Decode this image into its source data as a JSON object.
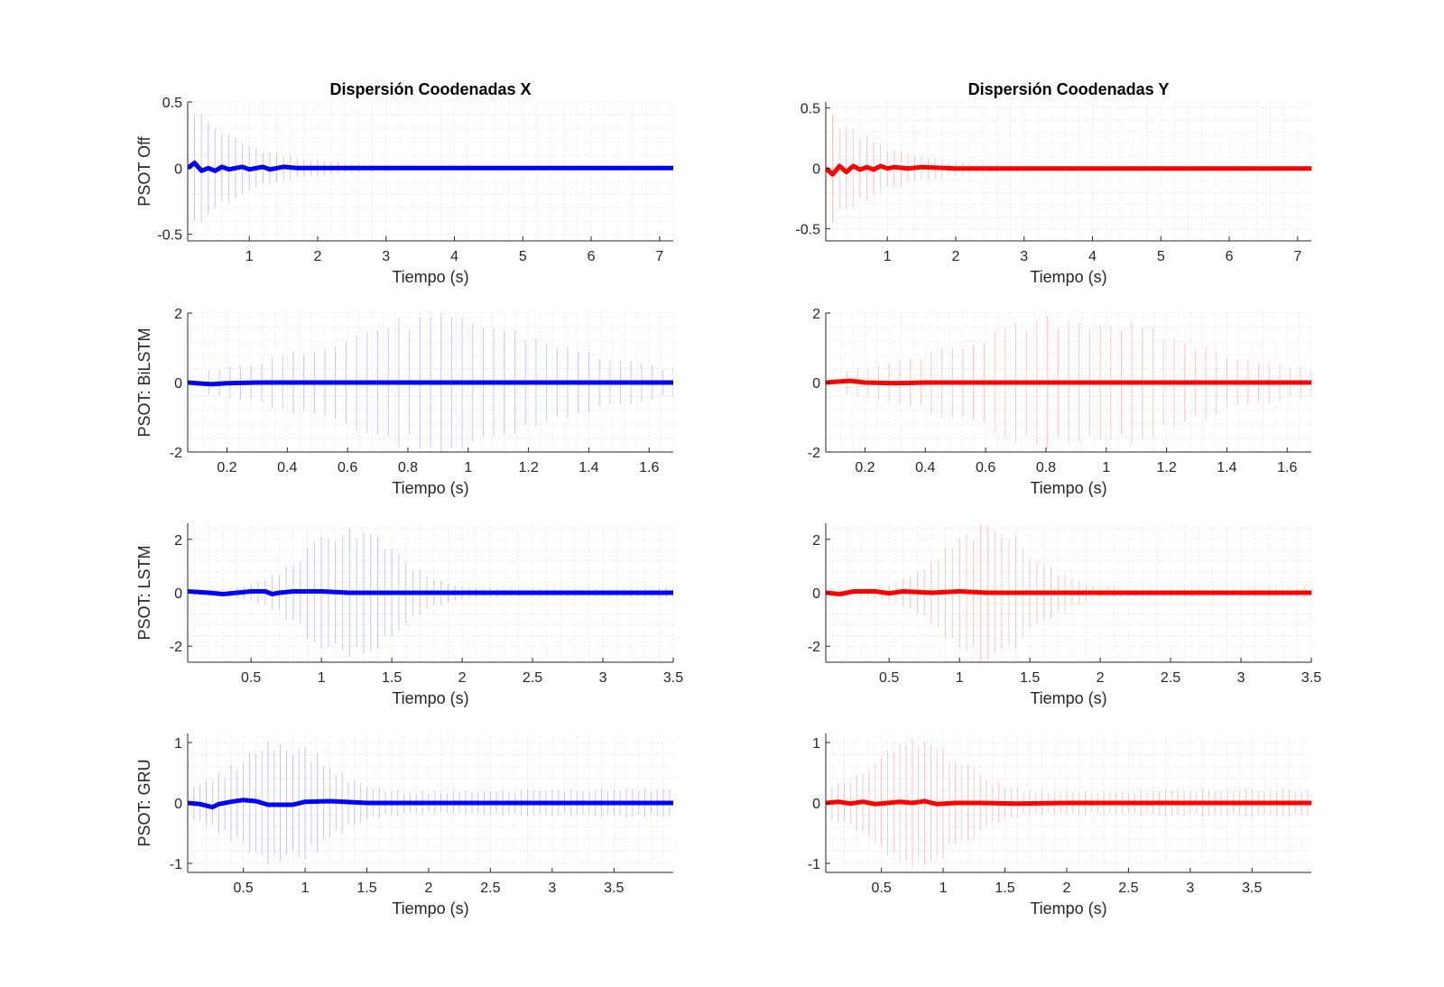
{
  "figure": {
    "background": "#ffffff"
  },
  "chart_data": [
    {
      "type": "line",
      "column": 0,
      "row": 0,
      "title": "Dispersión Coodenadas X",
      "xlabel": "Tiempo (s)",
      "ylabel": "PSOT Off",
      "xlim": [
        0.1,
        7.2
      ],
      "ylim": [
        -0.55,
        0.5
      ],
      "xticks": [
        1,
        2,
        3,
        4,
        5,
        6,
        7
      ],
      "yticks": [
        -0.5,
        0,
        0.5
      ],
      "grid": true,
      "color": "#0000ff",
      "mean": {
        "x": [
          0.1,
          0.2,
          0.3,
          0.4,
          0.5,
          0.6,
          0.7,
          0.8,
          0.9,
          1.0,
          1.1,
          1.2,
          1.3,
          1.5,
          1.7,
          2.0,
          2.5,
          3.0,
          7.2
        ],
        "y": [
          0.0,
          0.04,
          -0.02,
          0.0,
          -0.02,
          0.01,
          -0.01,
          0.0,
          0.01,
          -0.01,
          0.0,
          0.01,
          -0.01,
          0.01,
          0.0,
          0.0,
          0.0,
          0.0,
          0.0
        ]
      },
      "spread": {
        "x_start": 0.2,
        "x_end": 7.2,
        "step": 0.1,
        "amp_start": 0.5,
        "amp_end": 0.01,
        "decay": 0.8
      }
    },
    {
      "type": "line",
      "column": 1,
      "row": 0,
      "title": "Dispersión Coodenadas Y",
      "xlabel": "Tiempo (s)",
      "ylabel": "",
      "xlim": [
        0.1,
        7.2
      ],
      "ylim": [
        -0.6,
        0.55
      ],
      "xticks": [
        1,
        2,
        3,
        4,
        5,
        6,
        7
      ],
      "yticks": [
        -0.5,
        0,
        0.5
      ],
      "grid": true,
      "color": "#ff0000",
      "mean": {
        "x": [
          0.1,
          0.2,
          0.3,
          0.4,
          0.5,
          0.6,
          0.7,
          0.8,
          0.9,
          1.0,
          1.1,
          1.3,
          1.5,
          2.0,
          7.2
        ],
        "y": [
          0.0,
          -0.05,
          0.02,
          -0.03,
          0.02,
          -0.01,
          0.01,
          -0.01,
          0.02,
          0.0,
          0.01,
          0.0,
          0.01,
          0.0,
          0.0
        ]
      },
      "spread": {
        "x_start": 0.2,
        "x_end": 7.2,
        "step": 0.1,
        "amp_start": 0.5,
        "amp_end": 0.01,
        "decay": 0.8
      }
    },
    {
      "type": "line",
      "column": 0,
      "row": 1,
      "title": "",
      "xlabel": "Tiempo (s)",
      "ylabel": "PSOT: BiLSTM",
      "xlim": [
        0.07,
        1.68
      ],
      "ylim": [
        -2,
        2
      ],
      "xticks": [
        0.2,
        0.4,
        0.6,
        0.8,
        1,
        1.2,
        1.4,
        1.6
      ],
      "yticks": [
        -2,
        0,
        2
      ],
      "grid": true,
      "color": "#0000ff",
      "mean": {
        "x": [
          0.07,
          0.1,
          0.15,
          0.2,
          0.3,
          0.4,
          1.68
        ],
        "y": [
          0.0,
          -0.02,
          -0.05,
          -0.02,
          0.0,
          0.0,
          0.0
        ]
      },
      "spread": {
        "x_start": 0.14,
        "x_end": 1.68,
        "step": 0.035,
        "amp_start": 0.2,
        "amp_end": 0.3,
        "peak_x": 0.9,
        "peak_amp": 2.0,
        "width": 0.5
      }
    },
    {
      "type": "line",
      "column": 1,
      "row": 1,
      "title": "",
      "xlabel": "Tiempo (s)",
      "ylabel": "",
      "xlim": [
        0.07,
        1.68
      ],
      "ylim": [
        -2,
        2
      ],
      "xticks": [
        0.2,
        0.4,
        0.6,
        0.8,
        1,
        1.2,
        1.4,
        1.6
      ],
      "yticks": [
        -2,
        0,
        2
      ],
      "grid": true,
      "color": "#ff0000",
      "mean": {
        "x": [
          0.07,
          0.1,
          0.15,
          0.2,
          0.3,
          0.4,
          1.68
        ],
        "y": [
          0.0,
          0.02,
          0.05,
          0.0,
          -0.02,
          0.0,
          0.0
        ]
      },
      "spread": {
        "x_start": 0.14,
        "x_end": 1.68,
        "step": 0.035,
        "amp_start": 0.2,
        "amp_end": 0.3,
        "peak_x": 0.9,
        "peak_amp": 2.0,
        "width": 0.5
      }
    },
    {
      "type": "line",
      "column": 0,
      "row": 2,
      "title": "",
      "xlabel": "Tiempo (s)",
      "ylabel": "PSOT: LSTM",
      "xlim": [
        0.05,
        3.5
      ],
      "ylim": [
        -2.6,
        2.6
      ],
      "xticks": [
        0.5,
        1,
        1.5,
        2,
        2.5,
        3,
        3.5
      ],
      "yticks": [
        -2,
        0,
        2
      ],
      "grid": true,
      "color": "#0000ff",
      "mean": {
        "x": [
          0.05,
          0.2,
          0.3,
          0.4,
          0.5,
          0.6,
          0.65,
          0.7,
          0.8,
          1.0,
          1.2,
          1.5,
          2.0,
          3.5
        ],
        "y": [
          0.05,
          0.0,
          -0.05,
          0.0,
          0.05,
          0.05,
          -0.05,
          0.0,
          0.05,
          0.05,
          0.0,
          0.0,
          0.0,
          0.0
        ]
      },
      "spread": {
        "x_start": 0.1,
        "x_end": 3.5,
        "step": 0.05,
        "amp_start": 0.1,
        "amp_end": 0.2,
        "peak_x": 1.2,
        "peak_amp": 2.6,
        "width": 0.45
      }
    },
    {
      "type": "line",
      "column": 1,
      "row": 2,
      "title": "",
      "xlabel": "Tiempo (s)",
      "ylabel": "",
      "xlim": [
        0.05,
        3.5
      ],
      "ylim": [
        -2.6,
        2.6
      ],
      "xticks": [
        0.5,
        1,
        1.5,
        2,
        2.5,
        3,
        3.5
      ],
      "yticks": [
        -2,
        0,
        2
      ],
      "grid": true,
      "color": "#ff0000",
      "mean": {
        "x": [
          0.05,
          0.15,
          0.25,
          0.4,
          0.5,
          0.6,
          0.8,
          1.0,
          1.2,
          1.5,
          3.5
        ],
        "y": [
          0.0,
          -0.05,
          0.05,
          0.05,
          -0.02,
          0.05,
          0.0,
          0.05,
          0.0,
          0.0,
          0.0
        ]
      },
      "spread": {
        "x_start": 0.1,
        "x_end": 3.5,
        "step": 0.05,
        "amp_start": 0.1,
        "amp_end": 0.2,
        "peak_x": 1.2,
        "peak_amp": 2.6,
        "width": 0.45
      }
    },
    {
      "type": "line",
      "column": 0,
      "row": 3,
      "title": "",
      "xlabel": "Tiempo (s)",
      "ylabel": "PSOT: GRU",
      "xlim": [
        0.05,
        3.98
      ],
      "ylim": [
        -1.15,
        1.15
      ],
      "xticks": [
        0.5,
        1,
        1.5,
        2,
        2.5,
        3,
        3.5
      ],
      "yticks": [
        -1,
        0,
        1
      ],
      "grid": true,
      "color": "#0000ff",
      "mean": {
        "x": [
          0.05,
          0.15,
          0.25,
          0.3,
          0.4,
          0.5,
          0.6,
          0.7,
          0.8,
          0.9,
          1.0,
          1.2,
          1.5,
          2.0,
          3.98
        ],
        "y": [
          0.0,
          -0.02,
          -0.07,
          -0.02,
          0.02,
          0.05,
          0.03,
          -0.03,
          -0.03,
          -0.03,
          0.02,
          0.03,
          0.0,
          0.0,
          0.0
        ]
      },
      "spread": {
        "x_start": 0.1,
        "x_end": 3.98,
        "step": 0.05,
        "amp_start": 0.15,
        "amp_end": 0.25,
        "peak_x": 0.8,
        "peak_amp": 1.1,
        "width": 0.5
      }
    },
    {
      "type": "line",
      "column": 1,
      "row": 3,
      "title": "",
      "xlabel": "Tiempo (s)",
      "ylabel": "",
      "xlim": [
        0.05,
        3.98
      ],
      "ylim": [
        -1.15,
        1.15
      ],
      "xticks": [
        0.5,
        1,
        1.5,
        2,
        2.5,
        3,
        3.5
      ],
      "yticks": [
        -1,
        0,
        1
      ],
      "grid": true,
      "color": "#ff0000",
      "mean": {
        "x": [
          0.05,
          0.15,
          0.25,
          0.35,
          0.45,
          0.55,
          0.65,
          0.75,
          0.85,
          0.95,
          1.1,
          1.3,
          1.6,
          2.0,
          3.98
        ],
        "y": [
          0.0,
          0.02,
          -0.01,
          0.02,
          -0.02,
          0.0,
          0.02,
          0.0,
          0.03,
          -0.02,
          0.0,
          0.0,
          -0.01,
          0.0,
          0.0
        ]
      },
      "spread": {
        "x_start": 0.1,
        "x_end": 3.98,
        "step": 0.05,
        "amp_start": 0.15,
        "amp_end": 0.25,
        "peak_x": 0.8,
        "peak_amp": 1.1,
        "width": 0.5
      }
    }
  ]
}
